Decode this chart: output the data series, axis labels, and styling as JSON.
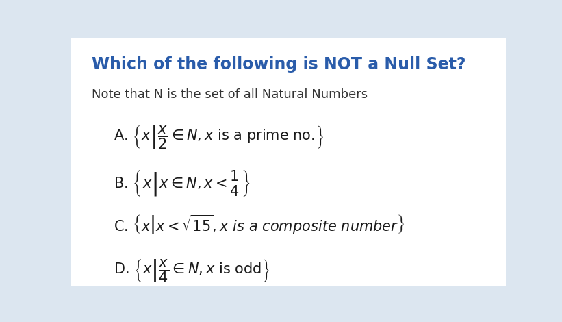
{
  "title": "Which of the following is NOT a Null Set?",
  "subtitle": "Note that N is the set of all Natural Numbers",
  "title_color": "#2a5caa",
  "subtitle_color": "#333333",
  "text_color": "#1a1a1a",
  "bg_color": "#dce6f0",
  "card_color": "#ffffff",
  "title_fontsize": 17,
  "subtitle_fontsize": 13,
  "option_fontsize": 15
}
